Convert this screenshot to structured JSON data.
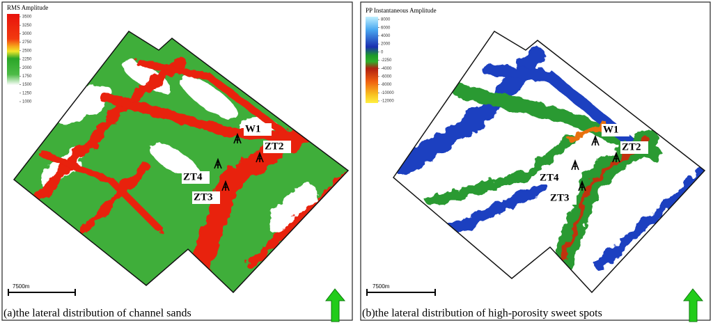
{
  "panels": [
    {
      "colorbar": {
        "title": "RMS Amplitude",
        "ticks": [
          3500,
          3250,
          3000,
          2750,
          2500,
          2250,
          2000,
          1750,
          1500,
          1250,
          1000
        ]
      },
      "wells": [
        "W1",
        "ZT2",
        "ZT4",
        "ZT3"
      ],
      "scale_bar": "7500m",
      "caption": "(a)the lateral distribution of channel sands"
    },
    {
      "colorbar": {
        "title": "PP Instantaneous Amplitude",
        "ticks": [
          8000,
          6000,
          4000,
          2000,
          0,
          -2250,
          -4000,
          -6000,
          -8000,
          -10000,
          -12000
        ]
      },
      "wells": [
        "W1",
        "ZT2",
        "ZT4",
        "ZT3"
      ],
      "scale_bar": "7500m",
      "caption": "(b)the lateral distribution of high-porosity sweet spots"
    }
  ]
}
